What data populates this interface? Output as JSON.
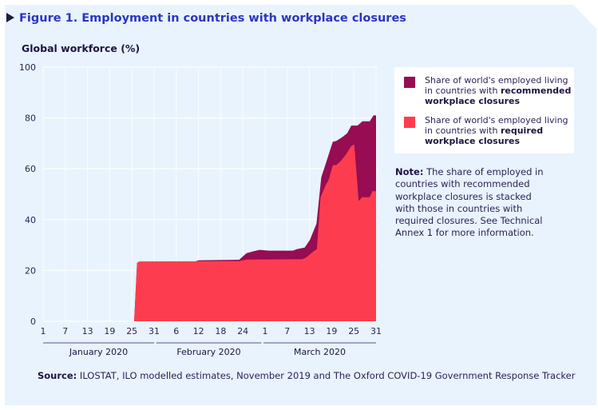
{
  "title": "Figure 1. Employment in countries with workplace closures",
  "note": {
    "label": "Note:",
    "text": "The share of employed in countries with recommended workplace closures is stacked with those in countries with required closures. See Technical Annex 1 for more information."
  },
  "source": {
    "label": "Source:",
    "text": "ILOSTAT, ILO modelled estimates, November 2019 and The Oxford COVID-19 Government Response Tracker"
  },
  "legend": [
    {
      "text": "Share of world's employed living in countries with ",
      "bold": "recommended workplace closures",
      "color": "#970c52"
    },
    {
      "text": "Share of world's employed living in countries with ",
      "bold": "required workplace closures",
      "color": "#fd3d4f"
    }
  ],
  "chart_data": {
    "type": "area",
    "stacked": true,
    "title": "Figure 1. Employment in countries with workplace closures",
    "ylabel": "Global workforce (%)",
    "xlabel": "",
    "x_unit": "day of year 2020 (1 = 1 Jan, 91 = 31 Mar)",
    "xlim": [
      1,
      91
    ],
    "ylim": [
      0,
      100
    ],
    "yticks": [
      0,
      20,
      40,
      60,
      80,
      100
    ],
    "xticks": [
      {
        "day": 1,
        "label": "1"
      },
      {
        "day": 7,
        "label": "7"
      },
      {
        "day": 13,
        "label": "13"
      },
      {
        "day": 19,
        "label": "19"
      },
      {
        "day": 25,
        "label": "25"
      },
      {
        "day": 31,
        "label": "31"
      },
      {
        "day": 37,
        "label": "6"
      },
      {
        "day": 43,
        "label": "12"
      },
      {
        "day": 49,
        "label": "18"
      },
      {
        "day": 55,
        "label": "24"
      },
      {
        "day": 61,
        "label": "1"
      },
      {
        "day": 67,
        "label": "7"
      },
      {
        "day": 73,
        "label": "13"
      },
      {
        "day": 79,
        "label": "19"
      },
      {
        "day": 85,
        "label": "25"
      },
      {
        "day": 91,
        "label": "31"
      }
    ],
    "months": [
      {
        "label": "January 2020",
        "start": 1,
        "end": 31
      },
      {
        "label": "February 2020",
        "start": 32,
        "end": 60
      },
      {
        "label": "March 2020",
        "start": 61,
        "end": 91
      }
    ],
    "grid": true,
    "legend_position": "right",
    "series": [
      {
        "name": "Required workplace closures",
        "color": "#fd3d4f",
        "points": [
          [
            1,
            0
          ],
          [
            25.6,
            0
          ],
          [
            26.4,
            23
          ],
          [
            27,
            23.5
          ],
          [
            54,
            23.7
          ],
          [
            56,
            24.3
          ],
          [
            71,
            24.4
          ],
          [
            72,
            25
          ],
          [
            74,
            27.4
          ],
          [
            75,
            28.4
          ],
          [
            76,
            48.8
          ],
          [
            77.4,
            53.6
          ],
          [
            78.2,
            55.7
          ],
          [
            79.3,
            61.4
          ],
          [
            80.3,
            61.5
          ],
          [
            81.4,
            63
          ],
          [
            82.9,
            65.7
          ],
          [
            84.3,
            69
          ],
          [
            85.1,
            69.6
          ],
          [
            86.3,
            47.3
          ],
          [
            87.2,
            48.8
          ],
          [
            89.3,
            48.8
          ],
          [
            90,
            51.2
          ],
          [
            91,
            51.2
          ]
        ]
      },
      {
        "name": "Recommended workplace closures (stacked total)",
        "color": "#970c52",
        "points": [
          [
            1,
            0
          ],
          [
            25.6,
            0
          ],
          [
            26.4,
            23
          ],
          [
            27,
            23.5
          ],
          [
            42,
            23.5
          ],
          [
            43,
            24
          ],
          [
            54,
            24.2
          ],
          [
            56,
            26.8
          ],
          [
            57.7,
            27.5
          ],
          [
            59.5,
            28.1
          ],
          [
            62,
            27.8
          ],
          [
            68.5,
            27.8
          ],
          [
            69.6,
            28.4
          ],
          [
            71.7,
            29
          ],
          [
            73.1,
            32
          ],
          [
            74.9,
            38.4
          ],
          [
            76.2,
            56.7
          ],
          [
            77.4,
            62
          ],
          [
            79.3,
            70.6
          ],
          [
            80.3,
            71
          ],
          [
            81.8,
            72.4
          ],
          [
            83.2,
            74
          ],
          [
            84.3,
            77
          ],
          [
            86,
            77
          ],
          [
            87.3,
            78.7
          ],
          [
            89.3,
            78.7
          ],
          [
            90.3,
            81
          ],
          [
            91,
            81
          ]
        ]
      }
    ]
  }
}
